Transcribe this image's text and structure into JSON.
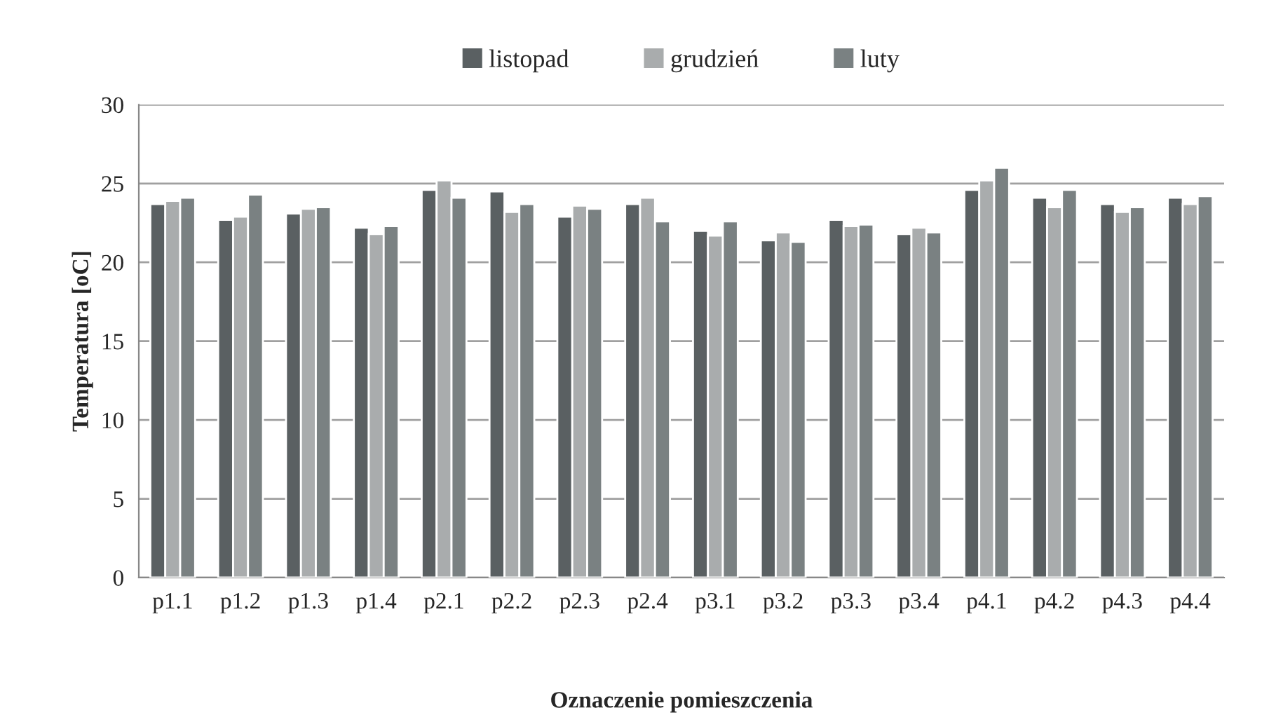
{
  "chart_data": {
    "type": "bar",
    "xlabel": "Oznaczenie pomieszczenia",
    "ylabel": "Temperatura [oC]",
    "categories": [
      "p1.1",
      "p1.2",
      "p1.3",
      "p1.4",
      "p2.1",
      "p2.2",
      "p2.3",
      "p2.4",
      "p3.1",
      "p3.2",
      "p3.3",
      "p3.4",
      "p4.1",
      "p4.2",
      "p4.3",
      "p4.4"
    ],
    "series": [
      {
        "name": "listopad",
        "color": "#5a6062",
        "values": [
          23.7,
          22.7,
          23.1,
          22.2,
          24.6,
          24.5,
          22.9,
          23.7,
          22.0,
          21.4,
          22.7,
          21.8,
          24.6,
          24.1,
          23.7,
          24.1
        ]
      },
      {
        "name": "grudzień",
        "color": "#a9acad",
        "values": [
          23.9,
          22.9,
          23.4,
          21.8,
          25.2,
          23.2,
          23.6,
          24.1,
          21.7,
          21.9,
          22.3,
          22.2,
          25.2,
          23.5,
          23.2,
          23.7
        ]
      },
      {
        "name": "luty",
        "color": "#7a8182",
        "values": [
          24.1,
          24.3,
          23.5,
          22.3,
          24.1,
          23.7,
          23.4,
          22.6,
          22.6,
          21.3,
          22.4,
          21.9,
          26.0,
          24.6,
          23.5,
          24.2
        ]
      }
    ],
    "ylim": [
      0,
      30
    ],
    "yticks": [
      0,
      5,
      10,
      15,
      20,
      25,
      30
    ],
    "grid": "y",
    "legend": "top"
  }
}
